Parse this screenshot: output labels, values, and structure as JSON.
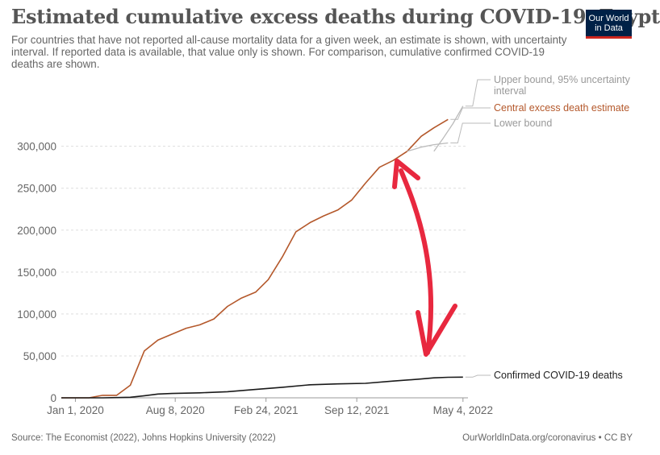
{
  "header": {
    "title": "Estimated cumulative excess deaths during COVID-19, Egypt",
    "subtitle": "For countries that have not reported all-cause mortality data for a given week, an estimate is shown, with uncertainty interval. If reported data is available, that value only is shown. For comparison, cumulative confirmed COVID-19 deaths are shown."
  },
  "logo": {
    "line1": "Our World",
    "line2": "in Data",
    "bg": "#002147",
    "accent": "#ce261e"
  },
  "footer": {
    "source": "Source: The Economist (2022), Johns Hopkins University (2022)",
    "license": "OurWorldInData.org/coronavirus • CC BY"
  },
  "colors": {
    "central": "#b4582b",
    "bounds": "#bbbbbb",
    "confirmed": "#1a1a1a",
    "annotation": "#e8283f",
    "grid": "#dddddd",
    "axis_text": "#666666"
  },
  "annotation": {
    "type": "double-headed-arrow",
    "color": "#e8283f"
  },
  "chart_data": {
    "type": "line",
    "title": "Estimated cumulative excess deaths during COVID-19, Egypt",
    "xlabel": "",
    "ylabel": "",
    "x_ticks": [
      "Jan 1, 2020",
      "Aug 8, 2020",
      "Feb 24, 2021",
      "Sep 12, 2021",
      "May 4, 2022"
    ],
    "y_ticks": [
      "0",
      "50,000",
      "100,000",
      "150,000",
      "200,000",
      "250,000",
      "300,000"
    ],
    "xlim": [
      "2019-12-01",
      "2022-05-15"
    ],
    "ylim": [
      0,
      340000
    ],
    "grid": "horizontal dashed",
    "legend": "right-side line labels",
    "series": [
      {
        "name": "Upper bound, 95% uncertainty interval",
        "style": "bounds",
        "points": [
          [
            "2022-03-01",
            294000
          ],
          [
            "2022-03-22",
            310000
          ],
          [
            "2022-04-12",
            327000
          ],
          [
            "2022-05-04",
            348000
          ]
        ]
      },
      {
        "name": "Central excess death estimate",
        "style": "central",
        "points": [
          [
            "2019-12-01",
            0
          ],
          [
            "2020-01-01",
            0
          ],
          [
            "2020-02-01",
            100
          ],
          [
            "2020-03-01",
            3000
          ],
          [
            "2020-04-01",
            3000
          ],
          [
            "2020-05-01",
            15000
          ],
          [
            "2020-06-01",
            56000
          ],
          [
            "2020-07-01",
            69000
          ],
          [
            "2020-08-01",
            76000
          ],
          [
            "2020-09-01",
            83000
          ],
          [
            "2020-10-01",
            87000
          ],
          [
            "2020-11-01",
            94000
          ],
          [
            "2020-12-01",
            109000
          ],
          [
            "2021-01-01",
            119000
          ],
          [
            "2021-02-01",
            126000
          ],
          [
            "2021-03-01",
            141000
          ],
          [
            "2021-04-01",
            168000
          ],
          [
            "2021-05-01",
            198000
          ],
          [
            "2021-06-01",
            209000
          ],
          [
            "2021-07-01",
            217000
          ],
          [
            "2021-08-01",
            224000
          ],
          [
            "2021-09-01",
            236000
          ],
          [
            "2021-10-01",
            256000
          ],
          [
            "2021-11-01",
            275000
          ],
          [
            "2021-12-01",
            283000
          ],
          [
            "2022-01-01",
            294000
          ],
          [
            "2022-02-01",
            312000
          ],
          [
            "2022-03-01",
            322000
          ],
          [
            "2022-04-01",
            332000
          ]
        ]
      },
      {
        "name": "Lower bound",
        "style": "bounds",
        "points": [
          [
            "2022-01-01",
            294000
          ],
          [
            "2022-02-01",
            299000
          ],
          [
            "2022-03-01",
            302000
          ],
          [
            "2022-04-01",
            304000
          ]
        ]
      },
      {
        "name": "Confirmed COVID-19 deaths",
        "style": "confirmed",
        "points": [
          [
            "2019-12-01",
            0
          ],
          [
            "2020-03-01",
            0
          ],
          [
            "2020-04-01",
            300
          ],
          [
            "2020-05-01",
            700
          ],
          [
            "2020-06-01",
            2500
          ],
          [
            "2020-07-01",
            4500
          ],
          [
            "2020-08-01",
            5200
          ],
          [
            "2020-10-01",
            6000
          ],
          [
            "2020-12-01",
            7300
          ],
          [
            "2021-02-01",
            10000
          ],
          [
            "2021-04-01",
            12600
          ],
          [
            "2021-06-01",
            15600
          ],
          [
            "2021-08-01",
            16600
          ],
          [
            "2021-10-01",
            17300
          ],
          [
            "2021-12-01",
            20000
          ],
          [
            "2022-02-01",
            22500
          ],
          [
            "2022-03-01",
            23800
          ],
          [
            "2022-04-01",
            24500
          ],
          [
            "2022-05-04",
            24700
          ]
        ]
      }
    ]
  }
}
